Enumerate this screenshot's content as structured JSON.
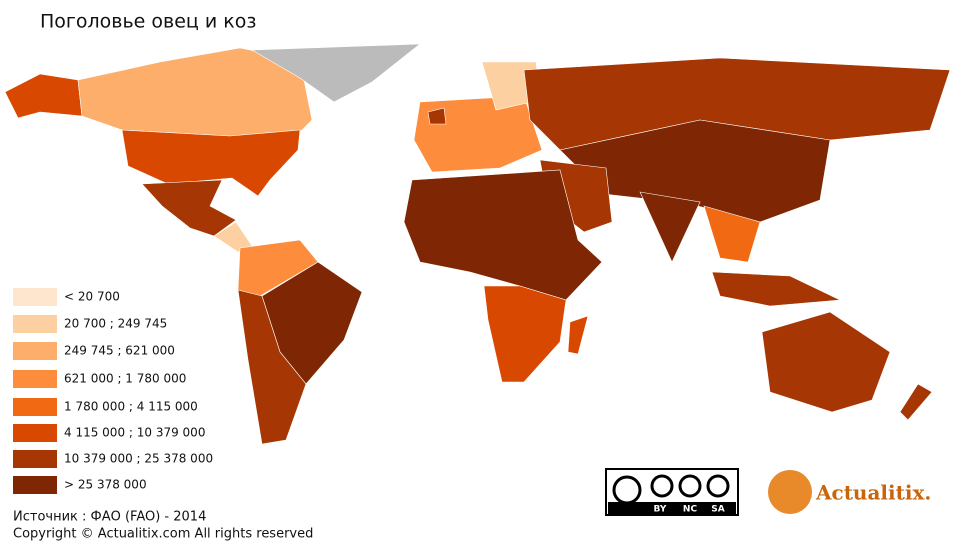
{
  "title": "Поголовье овец и коз",
  "legend": {
    "items": [
      {
        "label": "< 20 700",
        "color": "#fee6ce"
      },
      {
        "label": "20 700 ; 249 745",
        "color": "#fdd0a2"
      },
      {
        "label": "249 745 ; 621 000",
        "color": "#fdae6b"
      },
      {
        "label": "621 000 ; 1 780 000",
        "color": "#fd8d3c"
      },
      {
        "label": "1 780 000 ; 4 115 000",
        "color": "#f16913"
      },
      {
        "label": "4 115 000 ; 10 379 000",
        "color": "#d94801"
      },
      {
        "label": "10 379 000 ; 25 378 000",
        "color": "#a63603"
      },
      {
        "label": "> 25 378 000",
        "color": "#7f2704"
      }
    ]
  },
  "footer": {
    "source": "Источник : ФАО (FAO) - 2014",
    "copyright": "Copyright © Actualitix.com All rights reserved"
  },
  "badge": {
    "labels": [
      "BY",
      "NC",
      "SA"
    ]
  },
  "logo": {
    "text": "Actualitix."
  }
}
